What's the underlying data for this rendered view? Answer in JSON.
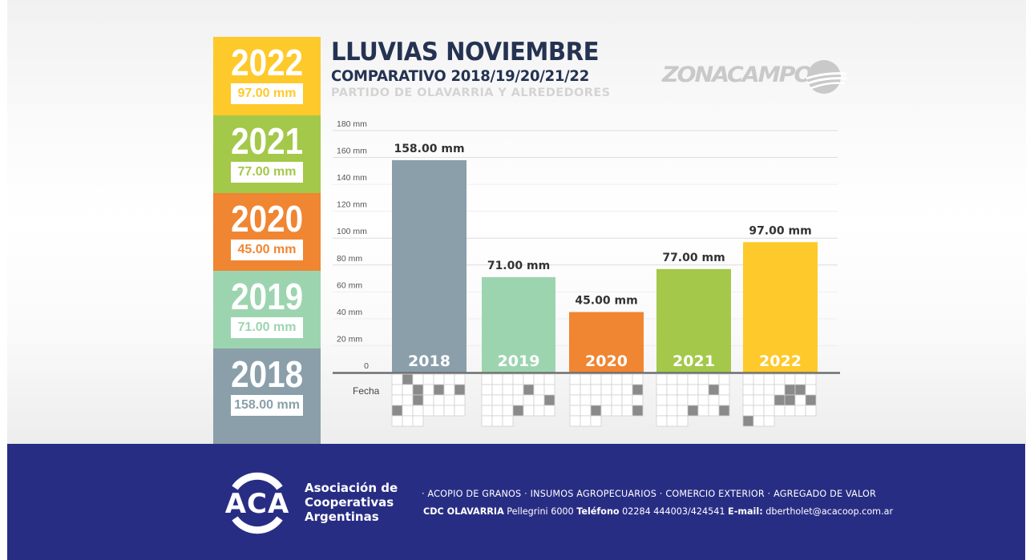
{
  "header": {
    "title": "LLUVIAS NOVIEMBRE",
    "subtitle": "COMPARATIVO 2018/19/20/21/22",
    "location": "PARTIDO DE OLAVARRIA Y ALREDEDORES",
    "brand_logo": "ZONACAMPO"
  },
  "year_panel": [
    {
      "year": "2022",
      "value": "97.00 mm",
      "color": "#fec92b"
    },
    {
      "year": "2021",
      "value": "77.00 mm",
      "color": "#a4c84a"
    },
    {
      "year": "2020",
      "value": "45.00 mm",
      "color": "#f08532"
    },
    {
      "year": "2019",
      "value": "71.00 mm",
      "color": "#9dd4b0"
    },
    {
      "year": "2018",
      "value": "158.00 mm",
      "color": "#8a9faa"
    }
  ],
  "chart_data": {
    "type": "bar",
    "title": "LLUVIAS NOVIEMBRE",
    "subtitle": "COMPARATIVO 2018/19/20/21/22",
    "categories": [
      "2018",
      "2019",
      "2020",
      "2021",
      "2022"
    ],
    "values": [
      158,
      71,
      45,
      77,
      97
    ],
    "value_labels": [
      "158.00 mm",
      "71.00 mm",
      "45.00 mm",
      "77.00 mm",
      "97.00 mm"
    ],
    "colors": [
      "#8a9faa",
      "#9dd4b0",
      "#f08532",
      "#a4c84a",
      "#fec92b"
    ],
    "xlabel": "Fecha",
    "ylabel": "",
    "ylim": [
      0,
      180
    ],
    "yticks": [
      0,
      20,
      40,
      60,
      80,
      100,
      120,
      140,
      160,
      180
    ],
    "ytick_labels": [
      "0",
      "20 mm",
      "40 mm",
      "60 mm",
      "80 mm",
      "100 mm",
      "120 mm",
      "140 mm",
      "160 mm",
      "180 mm"
    ],
    "grid": true,
    "legend": "none"
  },
  "footer": {
    "logo_letters": "ACA",
    "org_name_lines": [
      "Asociación de",
      "Cooperativas",
      "Argentinas"
    ],
    "services": "·  ACOPIO DE GRANOS  ·  INSUMOS AGROPECUARIOS  ·  COMERCIO EXTERIOR  ·  AGREGADO DE VALOR",
    "contact_branch": "CDC OLAVARRIA",
    "contact_address": " Pellegrini 6000 ",
    "contact_phone_label": "Teléfono",
    "contact_phone": " 02284 444003/424541 ",
    "contact_email_label": "E-mail:",
    "contact_email": " dbertholet@acacoop.com.ar"
  }
}
